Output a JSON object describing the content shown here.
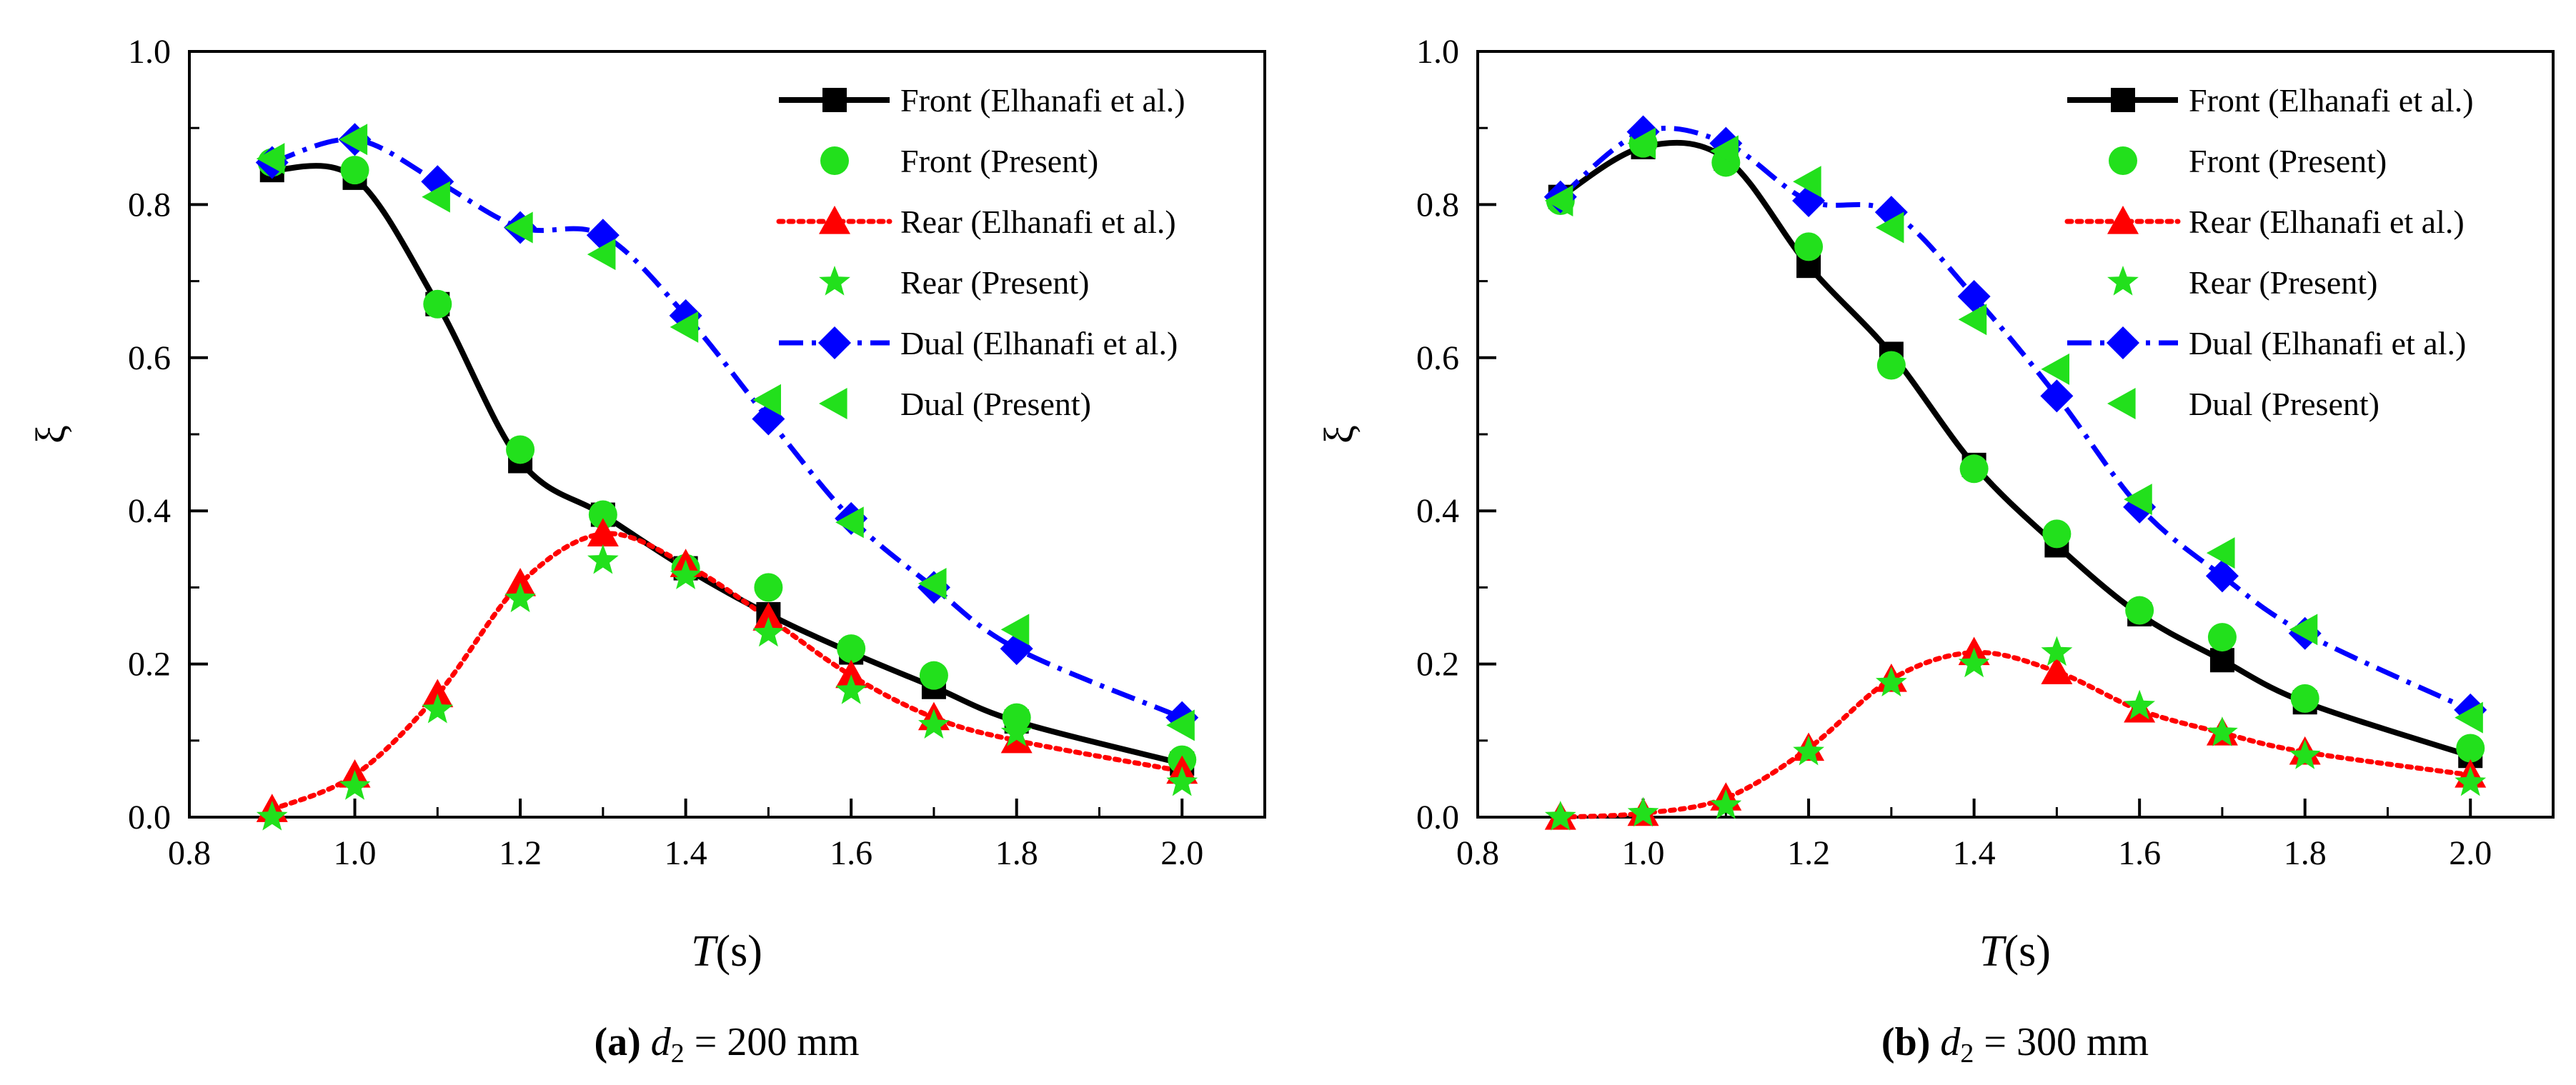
{
  "chart_data": [
    {
      "type": "line",
      "panel_label": "a",
      "caption": "d2 = 200 mm",
      "caption_parts": {
        "label": "(a)",
        "var": "d",
        "sub": "2",
        "rest": "= 200 mm"
      },
      "xlabel": {
        "symbol": "T",
        "unit": "(s)"
      },
      "ylabel": "ξ",
      "xlim": [
        0.8,
        2.1
      ],
      "ylim": [
        0.0,
        1.0
      ],
      "xticks": [
        "0.8",
        "1.0",
        "1.2",
        "1.4",
        "1.6",
        "1.8",
        "2.0"
      ],
      "yticks": [
        "0.0",
        "0.2",
        "0.4",
        "0.6",
        "0.8",
        "1.0"
      ],
      "legend_position": "top-right",
      "series": [
        {
          "name": "Front (Elhanafi et al.)",
          "marker": "square",
          "color": "#000000",
          "line": "solid",
          "x": [
            0.9,
            1.0,
            1.1,
            1.2,
            1.3,
            1.4,
            1.5,
            1.6,
            1.7,
            1.8,
            2.0
          ],
          "y": [
            0.845,
            0.835,
            0.67,
            0.465,
            0.395,
            0.325,
            0.265,
            0.215,
            0.17,
            0.125,
            0.07
          ]
        },
        {
          "name": "Front (Present)",
          "marker": "circle",
          "color": "#22e01c",
          "line": "none",
          "x": [
            0.9,
            1.0,
            1.1,
            1.2,
            1.3,
            1.4,
            1.5,
            1.6,
            1.7,
            1.8,
            2.0
          ],
          "y": [
            0.855,
            0.845,
            0.67,
            0.48,
            0.395,
            0.325,
            0.3,
            0.22,
            0.185,
            0.13,
            0.075
          ]
        },
        {
          "name": "Rear (Elhanafi et al.)",
          "marker": "triangle-up",
          "color": "#ff0000",
          "line": "dotted",
          "x": [
            0.9,
            1.0,
            1.1,
            1.2,
            1.3,
            1.4,
            1.5,
            1.6,
            1.7,
            1.8,
            2.0
          ],
          "y": [
            0.01,
            0.055,
            0.16,
            0.305,
            0.37,
            0.33,
            0.26,
            0.185,
            0.13,
            0.1,
            0.06
          ]
        },
        {
          "name": "Rear (Present)",
          "marker": "star",
          "color": "#22e01c",
          "line": "none",
          "x": [
            0.9,
            1.0,
            1.1,
            1.2,
            1.3,
            1.4,
            1.5,
            1.6,
            1.7,
            1.8,
            2.0
          ],
          "y": [
            0.0,
            0.04,
            0.14,
            0.285,
            0.335,
            0.315,
            0.24,
            0.165,
            0.12,
            0.11,
            0.045
          ]
        },
        {
          "name": "Dual (Elhanafi et al.)",
          "marker": "diamond",
          "color": "#0000ff",
          "line": "dashdot",
          "x": [
            0.9,
            1.0,
            1.1,
            1.2,
            1.3,
            1.4,
            1.5,
            1.6,
            1.7,
            1.8,
            2.0
          ],
          "y": [
            0.855,
            0.885,
            0.83,
            0.77,
            0.76,
            0.655,
            0.52,
            0.39,
            0.3,
            0.22,
            0.13
          ]
        },
        {
          "name": "Dual (Present)",
          "marker": "triangle-left",
          "color": "#22e01c",
          "line": "none",
          "x": [
            0.9,
            1.0,
            1.1,
            1.2,
            1.3,
            1.4,
            1.5,
            1.6,
            1.7,
            1.8,
            2.0
          ],
          "y": [
            0.86,
            0.885,
            0.81,
            0.77,
            0.735,
            0.64,
            0.545,
            0.385,
            0.305,
            0.245,
            0.12
          ]
        }
      ]
    },
    {
      "type": "line",
      "panel_label": "b",
      "caption": "d2 = 300 mm",
      "caption_parts": {
        "label": "(b)",
        "var": "d",
        "sub": "2",
        "rest": "= 300 mm"
      },
      "xlabel": {
        "symbol": "T",
        "unit": "(s)"
      },
      "ylabel": "ξ",
      "xlim": [
        0.8,
        2.1
      ],
      "ylim": [
        0.0,
        1.0
      ],
      "xticks": [
        "0.8",
        "1.0",
        "1.2",
        "1.4",
        "1.6",
        "1.8",
        "2.0"
      ],
      "yticks": [
        "0.0",
        "0.2",
        "0.4",
        "0.6",
        "0.8",
        "1.0"
      ],
      "legend_position": "top-right",
      "series": [
        {
          "name": "Front (Elhanafi et al.)",
          "marker": "square",
          "color": "#000000",
          "line": "solid",
          "x": [
            0.9,
            1.0,
            1.1,
            1.2,
            1.3,
            1.4,
            1.5,
            1.6,
            1.7,
            1.8,
            2.0
          ],
          "y": [
            0.81,
            0.875,
            0.86,
            0.72,
            0.605,
            0.46,
            0.355,
            0.265,
            0.205,
            0.15,
            0.08
          ]
        },
        {
          "name": "Front (Present)",
          "marker": "circle",
          "color": "#22e01c",
          "line": "none",
          "x": [
            0.9,
            1.0,
            1.1,
            1.2,
            1.3,
            1.4,
            1.5,
            1.6,
            1.7,
            1.8,
            2.0
          ],
          "y": [
            0.805,
            0.88,
            0.855,
            0.745,
            0.59,
            0.455,
            0.37,
            0.27,
            0.235,
            0.155,
            0.09
          ]
        },
        {
          "name": "Rear (Elhanafi et al.)",
          "marker": "triangle-up",
          "color": "#ff0000",
          "line": "dotted",
          "x": [
            0.9,
            1.0,
            1.1,
            1.2,
            1.3,
            1.4,
            1.5,
            1.6,
            1.7,
            1.8,
            2.0
          ],
          "y": [
            0.0,
            0.005,
            0.025,
            0.09,
            0.18,
            0.215,
            0.19,
            0.14,
            0.11,
            0.085,
            0.055
          ]
        },
        {
          "name": "Rear (Present)",
          "marker": "star",
          "color": "#22e01c",
          "line": "none",
          "x": [
            0.9,
            1.0,
            1.1,
            1.2,
            1.3,
            1.4,
            1.5,
            1.6,
            1.7,
            1.8,
            2.0
          ],
          "y": [
            0.0,
            0.005,
            0.015,
            0.085,
            0.175,
            0.2,
            0.215,
            0.145,
            0.11,
            0.08,
            0.045
          ]
        },
        {
          "name": "Dual (Elhanafi et al.)",
          "marker": "diamond",
          "color": "#0000ff",
          "line": "dashdot",
          "x": [
            0.9,
            1.0,
            1.1,
            1.2,
            1.3,
            1.4,
            1.5,
            1.6,
            1.7,
            1.8,
            2.0
          ],
          "y": [
            0.81,
            0.895,
            0.88,
            0.805,
            0.79,
            0.68,
            0.55,
            0.405,
            0.315,
            0.24,
            0.14
          ]
        },
        {
          "name": "Dual (Present)",
          "marker": "triangle-left",
          "color": "#22e01c",
          "line": "none",
          "x": [
            0.9,
            1.0,
            1.1,
            1.2,
            1.3,
            1.4,
            1.5,
            1.6,
            1.7,
            1.8,
            2.0
          ],
          "y": [
            0.805,
            0.88,
            0.87,
            0.83,
            0.77,
            0.65,
            0.585,
            0.415,
            0.345,
            0.245,
            0.13
          ]
        }
      ]
    }
  ]
}
